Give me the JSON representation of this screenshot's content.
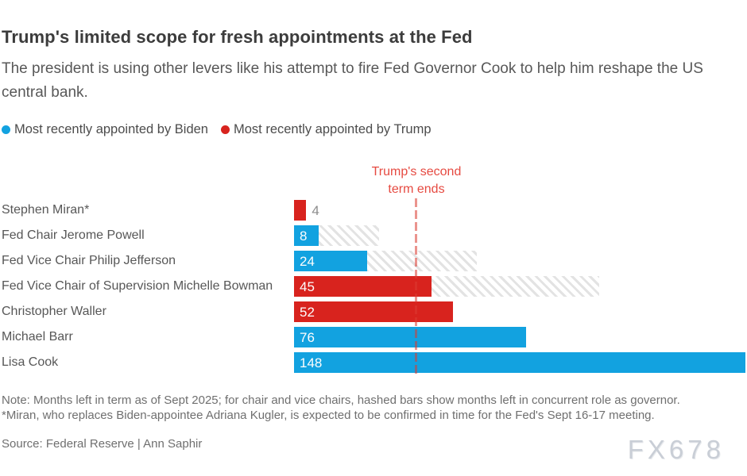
{
  "header": {
    "title": "Trump's limited scope for fresh appointments at the Fed",
    "subtitle": "The president is using other levers like his attempt to fire Fed Governor Cook to help him reshape the US central bank."
  },
  "legend": {
    "items": [
      {
        "key": "biden",
        "label": "Most recently appointed by Biden",
        "color": "#12a2e0"
      },
      {
        "key": "trump",
        "label": "Most recently appointed by Trump",
        "color": "#d8231e"
      }
    ]
  },
  "annotation": {
    "line1": "Trump's second",
    "line2": "term ends",
    "months_at": 40,
    "text_color": "#e64a41"
  },
  "colors": {
    "biden": "#12a2e0",
    "trump": "#d8231e",
    "hatch_stripe": "#e3e3e3",
    "term_line": "#db3b32"
  },
  "chart_data": {
    "type": "bar",
    "orientation": "horizontal",
    "unit": "months left in term as of Sept 2025",
    "x_range": [
      0,
      148
    ],
    "legend_position": "top-left",
    "grid": false,
    "categories": [
      "Stephen Miran*",
      "Fed Chair Jerome Powell",
      "Fed Vice Chair Philip Jefferson",
      "Fed Vice Chair of Supervision Michelle Bowman",
      "Christopher Waller",
      "Michael Barr",
      "Lisa Cook"
    ],
    "rows": [
      {
        "label": "Stephen Miran*",
        "value": 4,
        "appointed_by": "trump",
        "hatch_total": null,
        "value_inside": false
      },
      {
        "label": "Fed Chair Jerome Powell",
        "value": 8,
        "appointed_by": "biden",
        "hatch_total": 28,
        "value_inside": true
      },
      {
        "label": "Fed Vice Chair Philip Jefferson",
        "value": 24,
        "appointed_by": "biden",
        "hatch_total": 60,
        "value_inside": true
      },
      {
        "label": "Fed Vice Chair of Supervision Michelle Bowman",
        "value": 45,
        "appointed_by": "trump",
        "hatch_total": 100,
        "value_inside": true
      },
      {
        "label": "Christopher Waller",
        "value": 52,
        "appointed_by": "trump",
        "hatch_total": null,
        "value_inside": true
      },
      {
        "label": "Michael Barr",
        "value": 76,
        "appointed_by": "biden",
        "hatch_total": null,
        "value_inside": true
      },
      {
        "label": "Lisa Cook",
        "value": 148,
        "appointed_by": "biden",
        "hatch_total": null,
        "value_inside": true
      }
    ],
    "annotation_line_months": 40
  },
  "notes": {
    "line1": "Note: Months left in term as of Sept 2025; for chair and vice chairs, hashed bars show months left in concurrent role as governor.",
    "line2": "*Miran, who replaces Biden-appointee Adriana Kugler, is expected to be confirmed in time for the Fed's Sept 16-17 meeting."
  },
  "source": "Source: Federal Reserve | Ann Saphir",
  "watermark": "FX678"
}
